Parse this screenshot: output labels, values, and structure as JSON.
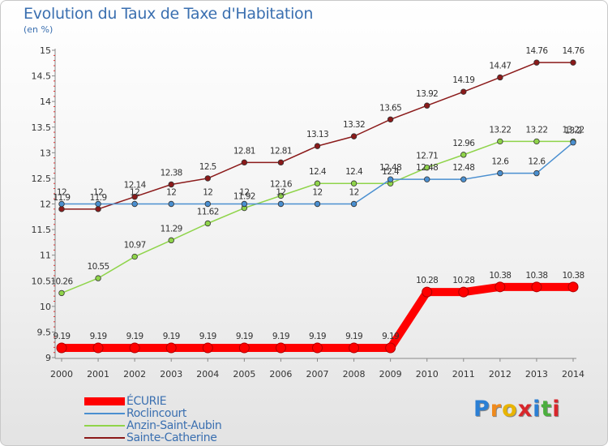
{
  "title": "Evolution du Taux de Taxe d'Habitation",
  "subtitle": "(en %)",
  "logo": "Proxiti",
  "chart_data": {
    "type": "line",
    "title": "Evolution du Taux de Taxe d'Habitation",
    "ylabel": "(en %)",
    "xlabel": "",
    "x": [
      "2000",
      "2001",
      "2002",
      "2003",
      "2004",
      "2005",
      "2006",
      "2007",
      "2008",
      "2009",
      "2010",
      "2011",
      "2012",
      "2013",
      "2014"
    ],
    "ylim": [
      9,
      15
    ],
    "yticks": [
      "9",
      "9.5",
      "10",
      "10.5",
      "11",
      "11.5",
      "12",
      "12.5",
      "13",
      "13.5",
      "14",
      "14.5",
      "15"
    ],
    "series": [
      {
        "name": "ÉCURIE",
        "color": "#ff0000",
        "values": [
          9.19,
          9.19,
          9.19,
          9.19,
          9.19,
          9.19,
          9.19,
          9.19,
          9.19,
          9.19,
          10.28,
          10.28,
          10.38,
          10.38,
          10.38
        ],
        "labels": [
          "9.19",
          "9.19",
          "9.19",
          "9.19",
          "9.19",
          "9.19",
          "9.19",
          "9.19",
          "9.19",
          "9.19",
          "10.28",
          "10.28",
          "10.38",
          "10.38",
          "10.38"
        ]
      },
      {
        "name": "Roclincourt",
        "color": "#4a8fd0",
        "values": [
          12,
          12,
          12,
          12,
          12,
          12,
          12,
          12,
          12,
          12.48,
          12.48,
          12.48,
          12.6,
          12.6,
          13.2
        ],
        "labels": [
          "12",
          "12",
          "12",
          "12",
          "12",
          "12",
          "12",
          "12",
          "12",
          "12.48",
          "12.48",
          "12.48",
          "12.6",
          "12.6",
          "13.2"
        ]
      },
      {
        "name": "Anzin-Saint-Aubin",
        "color": "#8fd44a",
        "values": [
          10.26,
          10.55,
          10.97,
          11.29,
          11.62,
          11.92,
          12.16,
          12.4,
          12.4,
          12.4,
          12.71,
          12.96,
          13.22,
          13.22,
          13.22
        ],
        "labels": [
          "10.26",
          "10.55",
          "10.97",
          "11.29",
          "11.62",
          "11.92",
          "12.16",
          "12.4",
          "12.4",
          "12.4",
          "12.71",
          "12.96",
          "13.22",
          "13.22",
          "13.22"
        ]
      },
      {
        "name": "Sainte-Catherine",
        "color": "#8b1a1a",
        "values": [
          11.9,
          11.9,
          12.14,
          12.38,
          12.5,
          12.81,
          12.81,
          13.13,
          13.32,
          13.65,
          13.92,
          14.19,
          14.47,
          14.76,
          14.76
        ],
        "labels": [
          "11.9",
          "11.9",
          "12.14",
          "12.38",
          "12.5",
          "12.81",
          "12.81",
          "13.13",
          "13.32",
          "13.65",
          "13.92",
          "14.19",
          "14.47",
          "14.76",
          "14.76"
        ]
      }
    ]
  }
}
